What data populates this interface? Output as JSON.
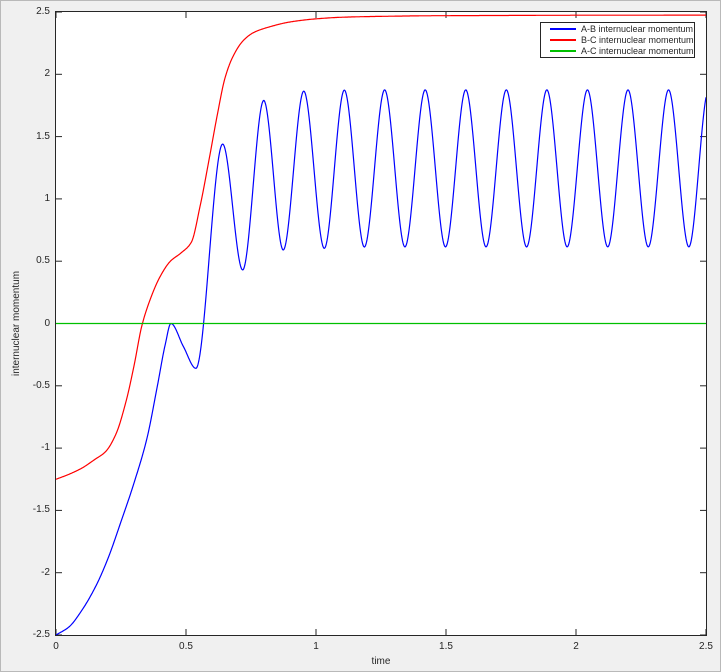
{
  "figure": {
    "bg": "#f0f0f0",
    "plot_bg": "#ffffff",
    "axis_color": "#262626",
    "outer_border": "#b9b9b9"
  },
  "chart_data": {
    "type": "line",
    "title": "",
    "xlabel": "time",
    "ylabel": "internuclear momentum",
    "xlim": [
      0,
      2.5
    ],
    "ylim": [
      -2.5,
      2.5
    ],
    "grid": false,
    "legend_position": "top-right",
    "xticks": [
      {
        "v": 0,
        "label": "0"
      },
      {
        "v": 0.5,
        "label": "0.5"
      },
      {
        "v": 1,
        "label": "1"
      },
      {
        "v": 1.5,
        "label": "1.5"
      },
      {
        "v": 2,
        "label": "2"
      },
      {
        "v": 2.5,
        "label": "2.5"
      }
    ],
    "yticks": [
      {
        "v": 2.5,
        "label": "2.5"
      },
      {
        "v": 2,
        "label": "2"
      },
      {
        "v": 1.5,
        "label": "1.5"
      },
      {
        "v": 1,
        "label": "1"
      },
      {
        "v": 0.5,
        "label": "0.5"
      },
      {
        "v": 0,
        "label": "0"
      },
      {
        "v": -0.5,
        "label": "-0.5"
      },
      {
        "v": -1,
        "label": "-1"
      },
      {
        "v": -1.5,
        "label": "-1.5"
      },
      {
        "v": -2,
        "label": "-2"
      },
      {
        "v": -2.5,
        "label": "-2.5"
      }
    ],
    "series": [
      {
        "id": "ab",
        "name": "A-B internuclear momentum",
        "color": "#0000ff",
        "points": [
          [
            0,
            -2.5
          ],
          [
            0.05,
            -2.435
          ],
          [
            0.1,
            -2.3
          ],
          [
            0.155,
            -2.1
          ],
          [
            0.2,
            -1.885
          ],
          [
            0.25,
            -1.59
          ],
          [
            0.3,
            -1.28
          ],
          [
            0.35,
            -0.92
          ],
          [
            0.39,
            -0.5
          ],
          [
            0.42,
            -0.17
          ],
          [
            0.442,
            0
          ],
          [
            0.49,
            -0.185
          ],
          [
            0.538,
            -0.36
          ],
          [
            0.641,
            1.44
          ],
          [
            0.718,
            0.43
          ],
          [
            0.799,
            1.79
          ],
          [
            0.874,
            0.59
          ],
          [
            0.953,
            1.865
          ],
          [
            1.032,
            0.603
          ],
          [
            1.109,
            1.873
          ],
          [
            1.186,
            0.614
          ],
          [
            1.264,
            1.875
          ],
          [
            1.342,
            0.615
          ],
          [
            1.42,
            1.875
          ],
          [
            1.498,
            0.615
          ],
          [
            1.576,
            1.875
          ],
          [
            1.654,
            0.615
          ],
          [
            1.732,
            1.875
          ],
          [
            1.81,
            0.615
          ],
          [
            1.888,
            1.875
          ],
          [
            1.966,
            0.615
          ],
          [
            2.044,
            1.875
          ],
          [
            2.122,
            0.615
          ],
          [
            2.2,
            1.875
          ],
          [
            2.278,
            0.615
          ],
          [
            2.356,
            1.875
          ],
          [
            2.434,
            0.615
          ],
          [
            2.51,
            1.875
          ],
          [
            2.588,
            0.615
          ]
        ]
      },
      {
        "id": "bc",
        "name": "B-C internuclear momentum",
        "color": "#ff0000",
        "points": [
          [
            0,
            -1.25
          ],
          [
            0.05,
            -1.21
          ],
          [
            0.1,
            -1.16
          ],
          [
            0.15,
            -1.09
          ],
          [
            0.19,
            -1.03
          ],
          [
            0.23,
            -0.89
          ],
          [
            0.27,
            -0.62
          ],
          [
            0.3,
            -0.34
          ],
          [
            0.33,
            -0.02
          ],
          [
            0.36,
            0.18
          ],
          [
            0.4,
            0.375
          ],
          [
            0.44,
            0.5
          ],
          [
            0.48,
            0.565
          ],
          [
            0.52,
            0.65
          ],
          [
            0.555,
            0.95
          ],
          [
            0.59,
            1.33
          ],
          [
            0.62,
            1.67
          ],
          [
            0.65,
            1.97
          ],
          [
            0.68,
            2.14
          ],
          [
            0.72,
            2.27
          ],
          [
            0.76,
            2.335
          ],
          [
            0.82,
            2.38
          ],
          [
            0.9,
            2.42
          ],
          [
            1,
            2.445
          ],
          [
            1.1,
            2.458
          ],
          [
            1.25,
            2.465
          ],
          [
            1.45,
            2.47
          ],
          [
            1.7,
            2.472
          ],
          [
            2,
            2.474
          ],
          [
            2.5,
            2.475
          ]
        ]
      },
      {
        "id": "ac",
        "name": "A-C internuclear momentum",
        "color": "#00c000",
        "points": [
          [
            0,
            0
          ],
          [
            2.5,
            0
          ]
        ]
      }
    ]
  }
}
